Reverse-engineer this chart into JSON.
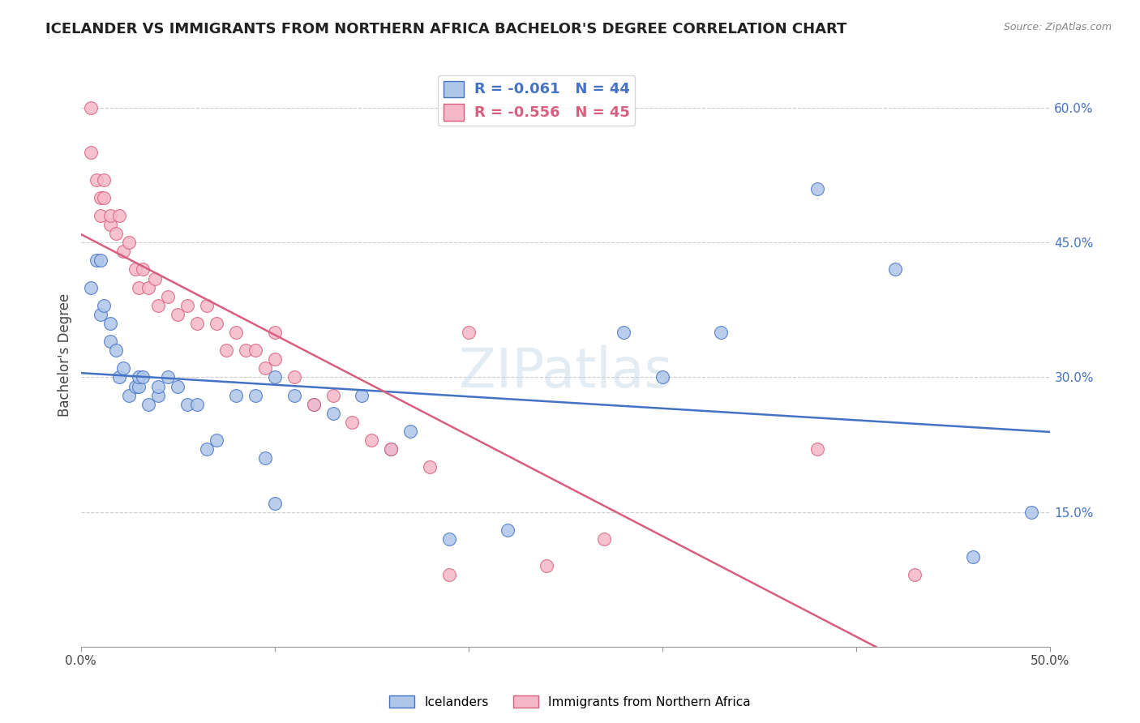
{
  "title": "ICELANDER VS IMMIGRANTS FROM NORTHERN AFRICA BACHELOR'S DEGREE CORRELATION CHART",
  "source": "Source: ZipAtlas.com",
  "ylabel": "Bachelor's Degree",
  "legend_labels": [
    "Icelanders",
    "Immigrants from Northern Africa"
  ],
  "blue_r": -0.061,
  "blue_n": 44,
  "pink_r": -0.556,
  "pink_n": 45,
  "xlim": [
    0.0,
    0.5
  ],
  "ylim": [
    0.0,
    0.65
  ],
  "yticks": [
    0.15,
    0.3,
    0.45,
    0.6
  ],
  "ytick_labels": [
    "15.0%",
    "30.0%",
    "45.0%",
    "60.0%"
  ],
  "xticks": [
    0.0,
    0.1,
    0.2,
    0.3,
    0.4,
    0.5
  ],
  "xtick_labels": [
    "0.0%",
    "",
    "",
    "",
    "",
    "50.0%"
  ],
  "blue_color": "#aec6e8",
  "pink_color": "#f5b8c8",
  "blue_line_color": "#4472c4",
  "pink_line_color": "#d95f7f",
  "background_color": "#ffffff",
  "grid_color": "#cccccc",
  "blue_x": [
    0.005,
    0.008,
    0.01,
    0.01,
    0.012,
    0.015,
    0.015,
    0.018,
    0.02,
    0.022,
    0.025,
    0.028,
    0.03,
    0.03,
    0.032,
    0.035,
    0.04,
    0.04,
    0.045,
    0.05,
    0.055,
    0.06,
    0.065,
    0.07,
    0.08,
    0.09,
    0.095,
    0.1,
    0.1,
    0.11,
    0.12,
    0.13,
    0.145,
    0.16,
    0.17,
    0.19,
    0.22,
    0.28,
    0.3,
    0.33,
    0.38,
    0.42,
    0.46,
    0.49
  ],
  "blue_y": [
    0.4,
    0.43,
    0.43,
    0.37,
    0.38,
    0.36,
    0.34,
    0.33,
    0.3,
    0.31,
    0.28,
    0.29,
    0.29,
    0.3,
    0.3,
    0.27,
    0.28,
    0.29,
    0.3,
    0.29,
    0.27,
    0.27,
    0.22,
    0.23,
    0.28,
    0.28,
    0.21,
    0.16,
    0.3,
    0.28,
    0.27,
    0.26,
    0.28,
    0.22,
    0.24,
    0.12,
    0.13,
    0.35,
    0.3,
    0.35,
    0.51,
    0.42,
    0.1,
    0.15
  ],
  "pink_x": [
    0.005,
    0.005,
    0.008,
    0.01,
    0.01,
    0.012,
    0.012,
    0.015,
    0.015,
    0.018,
    0.02,
    0.022,
    0.025,
    0.028,
    0.03,
    0.032,
    0.035,
    0.038,
    0.04,
    0.045,
    0.05,
    0.055,
    0.06,
    0.065,
    0.07,
    0.075,
    0.08,
    0.085,
    0.09,
    0.095,
    0.1,
    0.1,
    0.11,
    0.12,
    0.13,
    0.14,
    0.15,
    0.16,
    0.18,
    0.19,
    0.2,
    0.24,
    0.27,
    0.38,
    0.43
  ],
  "pink_y": [
    0.6,
    0.55,
    0.52,
    0.5,
    0.48,
    0.5,
    0.52,
    0.47,
    0.48,
    0.46,
    0.48,
    0.44,
    0.45,
    0.42,
    0.4,
    0.42,
    0.4,
    0.41,
    0.38,
    0.39,
    0.37,
    0.38,
    0.36,
    0.38,
    0.36,
    0.33,
    0.35,
    0.33,
    0.33,
    0.31,
    0.35,
    0.32,
    0.3,
    0.27,
    0.28,
    0.25,
    0.23,
    0.22,
    0.2,
    0.08,
    0.35,
    0.09,
    0.12,
    0.22,
    0.08
  ]
}
